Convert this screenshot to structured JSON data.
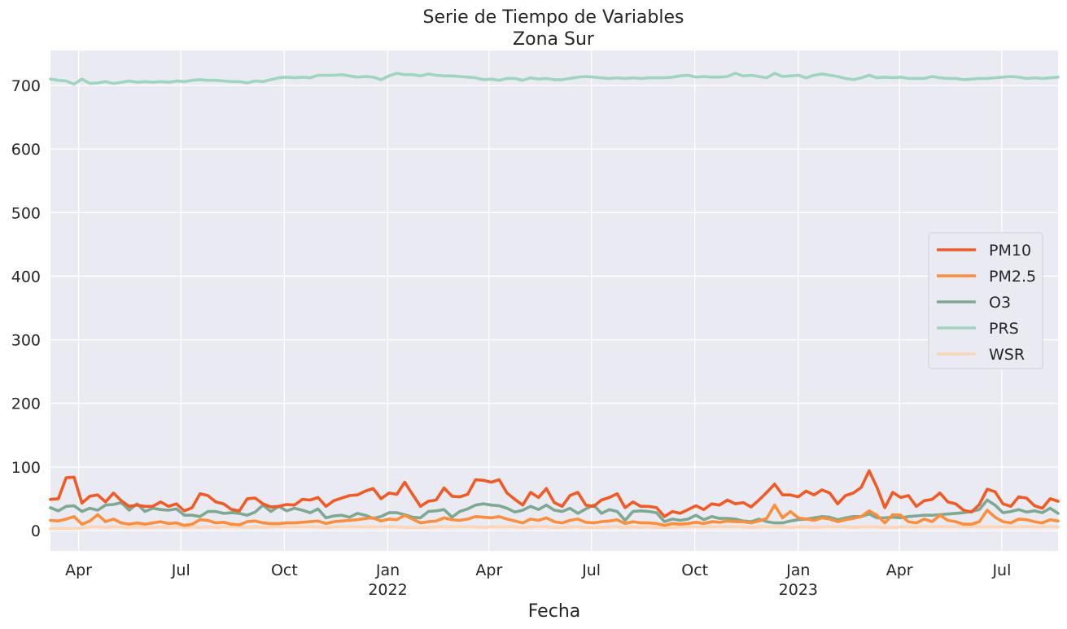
{
  "chart_data": {
    "type": "line",
    "title": "Serie de Tiempo de Variables",
    "subtitle": "Zona Sur",
    "xlabel": "Fecha",
    "ylabel": "",
    "x_start": "2021-03-07",
    "x_end": "2023-08-20",
    "x_step_days": 7,
    "ylim": [
      -32,
      755
    ],
    "yticks": [
      0,
      100,
      200,
      300,
      400,
      500,
      600,
      700
    ],
    "xticks": [
      {
        "date": "2021-04-01",
        "label": "Apr",
        "sublabel": ""
      },
      {
        "date": "2021-07-01",
        "label": "Jul",
        "sublabel": ""
      },
      {
        "date": "2021-10-01",
        "label": "Oct",
        "sublabel": ""
      },
      {
        "date": "2022-01-01",
        "label": "Jan",
        "sublabel": "2022"
      },
      {
        "date": "2022-04-01",
        "label": "Apr",
        "sublabel": ""
      },
      {
        "date": "2022-07-01",
        "label": "Jul",
        "sublabel": ""
      },
      {
        "date": "2022-10-01",
        "label": "Oct",
        "sublabel": ""
      },
      {
        "date": "2023-01-01",
        "label": "Jan",
        "sublabel": "2023"
      },
      {
        "date": "2023-04-01",
        "label": "Apr",
        "sublabel": ""
      },
      {
        "date": "2023-07-01",
        "label": "Jul",
        "sublabel": ""
      }
    ],
    "grid": true,
    "legend_position": "center-right",
    "series": [
      {
        "name": "PM10",
        "color": "#f15a24",
        "values": [
          49,
          50,
          83,
          84,
          43,
          54,
          56,
          45,
          59,
          47,
          38,
          40,
          38,
          38,
          45,
          38,
          42,
          31,
          36,
          58,
          55,
          45,
          42,
          33,
          31,
          50,
          51,
          42,
          37,
          38,
          41,
          40,
          49,
          48,
          52,
          38,
          47,
          51,
          55,
          56,
          62,
          66,
          50,
          59,
          57,
          76,
          57,
          38,
          46,
          48,
          67,
          54,
          53,
          57,
          80,
          79,
          76,
          80,
          59,
          49,
          40,
          60,
          52,
          66,
          44,
          38,
          55,
          60,
          40,
          38,
          48,
          52,
          58,
          36,
          45,
          38,
          38,
          36,
          22,
          30,
          27,
          33,
          39,
          33,
          42,
          40,
          48,
          42,
          44,
          37,
          48,
          60,
          73,
          56,
          56,
          53,
          62,
          56,
          64,
          59,
          42,
          55,
          59,
          68,
          94,
          68,
          36,
          60,
          52,
          55,
          38,
          47,
          49,
          59,
          45,
          42,
          32,
          29,
          41,
          65,
          61,
          42,
          38,
          53,
          51,
          39,
          35,
          50,
          46
        ]
      },
      {
        "name": "PM2.5",
        "color": "#fc8d3b",
        "values": [
          16,
          15,
          18,
          22,
          10,
          15,
          25,
          14,
          18,
          12,
          10,
          12,
          10,
          12,
          14,
          11,
          12,
          8,
          10,
          17,
          16,
          12,
          13,
          10,
          9,
          14,
          15,
          12,
          11,
          11,
          12,
          12,
          13,
          14,
          15,
          11,
          14,
          15,
          16,
          17,
          19,
          20,
          15,
          18,
          17,
          24,
          18,
          12,
          14,
          15,
          20,
          17,
          16,
          18,
          22,
          21,
          20,
          22,
          18,
          15,
          12,
          18,
          16,
          20,
          14,
          12,
          16,
          18,
          13,
          12,
          14,
          15,
          17,
          11,
          14,
          12,
          12,
          11,
          8,
          11,
          10,
          11,
          13,
          11,
          14,
          13,
          15,
          14,
          14,
          12,
          15,
          19,
          40,
          20,
          30,
          20,
          18,
          16,
          20,
          18,
          14,
          17,
          19,
          22,
          31,
          24,
          12,
          25,
          24,
          14,
          12,
          18,
          14,
          24,
          16,
          14,
          10,
          10,
          14,
          32,
          21,
          14,
          12,
          18,
          17,
          14,
          12,
          17,
          15
        ]
      },
      {
        "name": "O3",
        "color": "#7ea892",
        "values": [
          36,
          31,
          38,
          39,
          30,
          35,
          32,
          40,
          41,
          44,
          32,
          42,
          30,
          35,
          33,
          32,
          34,
          24,
          24,
          22,
          30,
          30,
          27,
          28,
          27,
          24,
          29,
          40,
          30,
          38,
          31,
          35,
          32,
          28,
          34,
          20,
          23,
          24,
          21,
          27,
          24,
          19,
          22,
          28,
          28,
          25,
          21,
          20,
          30,
          31,
          33,
          21,
          30,
          34,
          40,
          42,
          40,
          39,
          35,
          29,
          32,
          38,
          33,
          40,
          32,
          30,
          35,
          27,
          34,
          40,
          27,
          33,
          30,
          16,
          30,
          31,
          30,
          28,
          14,
          18,
          16,
          18,
          24,
          17,
          22,
          19,
          19,
          18,
          15,
          14,
          18,
          14,
          12,
          12,
          15,
          17,
          18,
          20,
          22,
          21,
          17,
          20,
          22,
          22,
          26,
          20,
          20,
          21,
          20,
          22,
          23,
          24,
          24,
          25,
          26,
          27,
          28,
          30,
          33,
          48,
          40,
          28,
          30,
          33,
          29,
          31,
          28,
          35,
          27
        ]
      },
      {
        "name": "PRS",
        "color": "#9fd4bf",
        "values": [
          710,
          708,
          707,
          702,
          710,
          703,
          704,
          706,
          703,
          705,
          707,
          705,
          706,
          705,
          706,
          705,
          707,
          706,
          708,
          709,
          708,
          708,
          707,
          706,
          706,
          704,
          707,
          706,
          709,
          712,
          713,
          712,
          713,
          712,
          716,
          716,
          716,
          717,
          715,
          713,
          714,
          713,
          709,
          715,
          719,
          717,
          717,
          715,
          718,
          716,
          715,
          715,
          714,
          713,
          712,
          709,
          710,
          708,
          711,
          711,
          708,
          712,
          710,
          711,
          709,
          709,
          711,
          713,
          714,
          713,
          712,
          711,
          712,
          711,
          712,
          711,
          712,
          712,
          712,
          713,
          715,
          716,
          713,
          714,
          713,
          713,
          714,
          719,
          715,
          716,
          714,
          712,
          719,
          714,
          715,
          716,
          712,
          716,
          718,
          716,
          714,
          711,
          709,
          712,
          716,
          712,
          713,
          712,
          713,
          711,
          711,
          711,
          714,
          712,
          711,
          711,
          709,
          710,
          711,
          711,
          712,
          713,
          714,
          713,
          711,
          712,
          711,
          712,
          713
        ]
      },
      {
        "name": "WSR",
        "color": "#fdd6b8",
        "values": [
          3,
          3,
          3,
          3,
          4,
          6,
          6,
          5,
          6,
          6,
          5,
          6,
          5,
          5,
          6,
          5,
          6,
          5,
          6,
          5,
          6,
          5,
          6,
          6,
          6,
          5,
          6,
          5,
          6,
          6,
          6,
          6,
          6,
          6,
          6,
          5,
          6,
          6,
          6,
          6,
          6,
          6,
          6,
          6,
          6,
          5,
          5,
          5,
          5,
          6,
          6,
          6,
          6,
          6,
          6,
          5,
          6,
          6,
          6,
          6,
          5,
          6,
          6,
          6,
          5,
          5,
          6,
          6,
          5,
          5,
          5,
          6,
          6,
          5,
          6,
          5,
          6,
          5,
          5,
          5,
          6,
          6,
          6,
          6,
          6,
          6,
          6,
          6,
          6,
          5,
          6,
          6,
          6,
          6,
          5,
          6,
          6,
          5,
          6,
          6,
          6,
          6,
          5,
          6,
          6,
          6,
          5,
          5,
          6,
          6,
          6,
          6,
          6,
          6,
          6,
          6,
          6,
          6,
          6,
          6,
          6,
          6,
          6,
          6,
          6,
          6,
          6,
          6,
          6
        ]
      }
    ]
  }
}
